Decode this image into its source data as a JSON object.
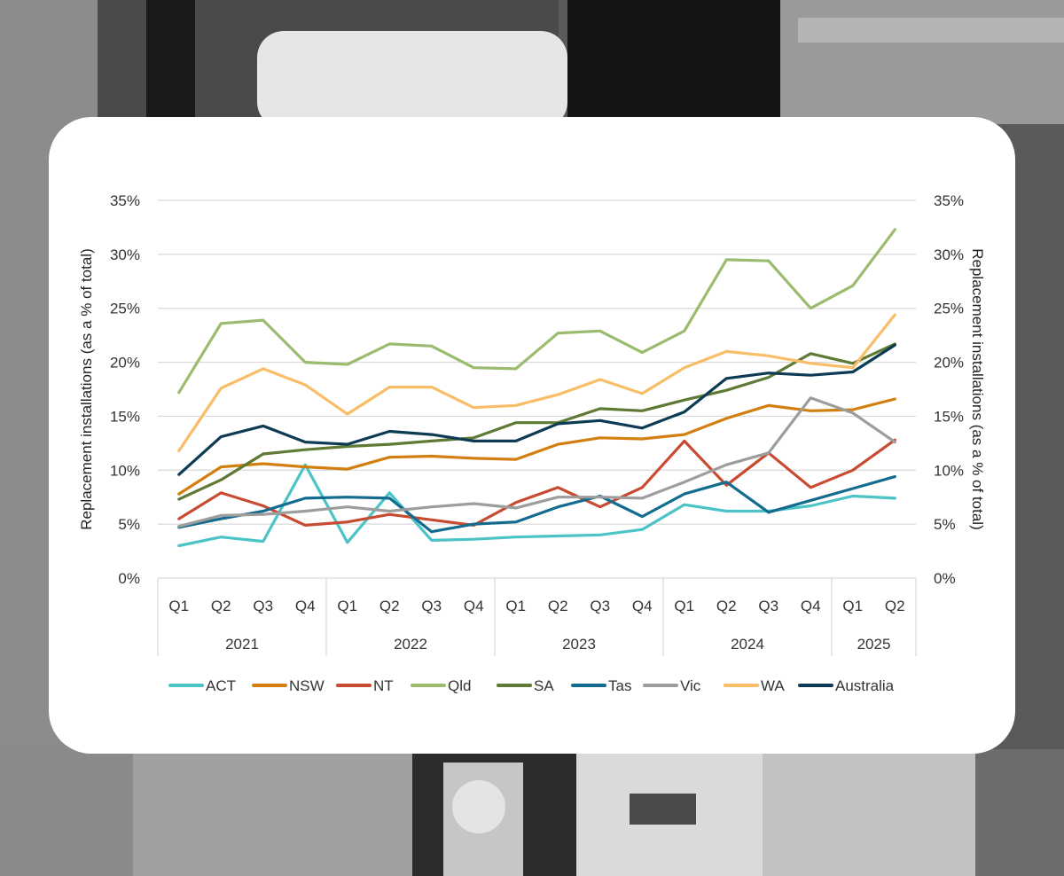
{
  "chart_data": {
    "type": "line",
    "title": "",
    "ylabel_left": "Replacement installations (as a % of total)",
    "ylabel_right": "Replacement installations (as a % of total)",
    "ylim": [
      0,
      35
    ],
    "yticks": [
      0,
      5,
      10,
      15,
      20,
      25,
      30,
      35
    ],
    "ytick_labels": [
      "0%",
      "5%",
      "10%",
      "15%",
      "20%",
      "25%",
      "30%",
      "35%"
    ],
    "grid": true,
    "legend_position": "bottom",
    "categories": [
      "Q1",
      "Q2",
      "Q3",
      "Q4",
      "Q1",
      "Q2",
      "Q3",
      "Q4",
      "Q1",
      "Q2",
      "Q3",
      "Q4",
      "Q1",
      "Q2",
      "Q3",
      "Q4",
      "Q1",
      "Q2"
    ],
    "years": [
      {
        "label": "2021",
        "quarters": 4
      },
      {
        "label": "2022",
        "quarters": 4
      },
      {
        "label": "2023",
        "quarters": 4
      },
      {
        "label": "2024",
        "quarters": 4
      },
      {
        "label": "2025",
        "quarters": 2
      }
    ],
    "series": [
      {
        "name": "ACT",
        "color": "#4bc3c7",
        "values": [
          3.0,
          3.8,
          3.4,
          10.5,
          3.3,
          7.9,
          3.5,
          3.6,
          3.8,
          3.9,
          4.0,
          4.5,
          6.8,
          6.2,
          6.2,
          6.7,
          7.6,
          7.4
        ]
      },
      {
        "name": "NSW",
        "color": "#d37f0f",
        "values": [
          7.8,
          10.3,
          10.6,
          10.3,
          10.1,
          11.2,
          11.3,
          11.1,
          11.0,
          12.4,
          13.0,
          12.9,
          13.3,
          14.8,
          16.0,
          15.5,
          15.6,
          16.6
        ]
      },
      {
        "name": "NT",
        "color": "#c84b31",
        "values": [
          5.5,
          7.9,
          6.7,
          4.9,
          5.2,
          5.9,
          5.4,
          4.9,
          7.0,
          8.4,
          6.6,
          8.4,
          12.7,
          8.6,
          11.6,
          8.4,
          10.0,
          12.8
        ]
      },
      {
        "name": "Qld",
        "color": "#9bbb6e",
        "values": [
          17.2,
          23.6,
          23.9,
          20.0,
          19.8,
          21.7,
          21.5,
          19.5,
          19.4,
          22.7,
          22.9,
          20.9,
          22.9,
          29.5,
          29.4,
          25.0,
          27.1,
          32.3
        ]
      },
      {
        "name": "SA",
        "color": "#5e7a35",
        "values": [
          7.3,
          9.1,
          11.5,
          11.9,
          12.2,
          12.4,
          12.7,
          13.0,
          14.4,
          14.4,
          15.7,
          15.5,
          16.5,
          17.4,
          18.6,
          20.8,
          19.9,
          21.7
        ]
      },
      {
        "name": "Tas",
        "color": "#136b8f",
        "values": [
          4.7,
          5.5,
          6.2,
          7.4,
          7.5,
          7.4,
          4.3,
          5.0,
          5.2,
          6.6,
          7.6,
          5.7,
          7.8,
          8.9,
          6.1,
          7.2,
          8.3,
          9.4
        ]
      },
      {
        "name": "Vic",
        "color": "#9d9d9d",
        "values": [
          4.8,
          5.8,
          5.9,
          6.2,
          6.6,
          6.2,
          6.6,
          6.9,
          6.5,
          7.5,
          7.5,
          7.4,
          8.9,
          10.5,
          11.6,
          16.7,
          15.3,
          12.6
        ]
      },
      {
        "name": "WA",
        "color": "#f8bd66",
        "values": [
          11.8,
          17.6,
          19.4,
          17.9,
          15.2,
          17.7,
          17.7,
          15.8,
          16.0,
          17.0,
          18.4,
          17.1,
          19.5,
          21.0,
          20.6,
          19.9,
          19.5,
          24.4
        ]
      },
      {
        "name": "Australia",
        "color": "#0d3b54",
        "values": [
          9.6,
          13.1,
          14.1,
          12.6,
          12.4,
          13.6,
          13.3,
          12.7,
          12.7,
          14.3,
          14.6,
          13.9,
          15.4,
          18.5,
          19.0,
          18.8,
          19.1,
          21.6
        ]
      }
    ]
  }
}
